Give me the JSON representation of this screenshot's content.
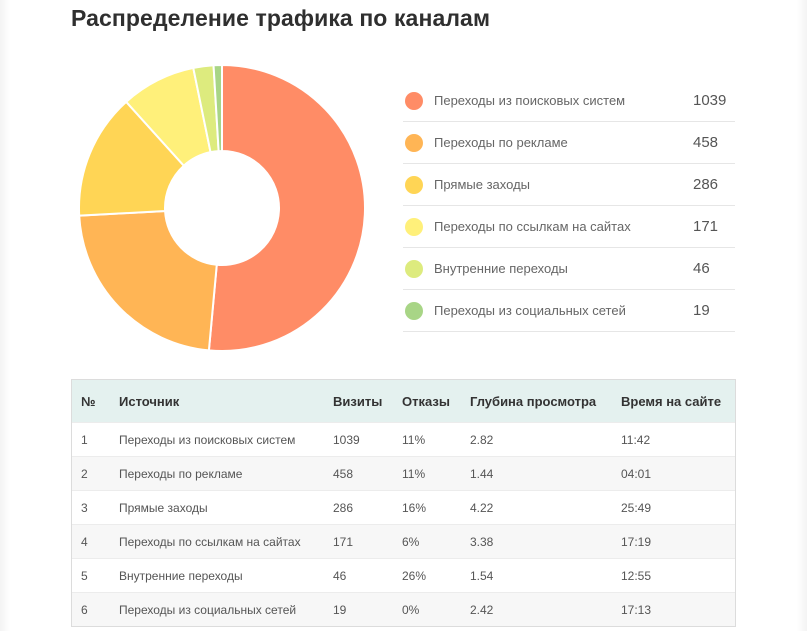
{
  "title": "Распределение трафика по каналам",
  "chart_data": {
    "type": "pie",
    "title": "Распределение трафика по каналам",
    "categories": [
      "Переходы из поисковых систем",
      "Переходы по рекламе",
      "Прямые заходы",
      "Переходы по ссылкам на сайтах",
      "Внутренние переходы",
      "Переходы из социальных сетей"
    ],
    "values": [
      1039,
      458,
      286,
      171,
      46,
      19
    ],
    "colors": [
      "#FF8C66",
      "#FFB555",
      "#FFD555",
      "#FFF07A",
      "#DDEB7E",
      "#A8D586"
    ],
    "hole": "donut"
  },
  "legend": [
    {
      "label": "Переходы из поисковых систем",
      "value": "1039",
      "color": "#FF8C66"
    },
    {
      "label": "Переходы по рекламе",
      "value": "458",
      "color": "#FFB555"
    },
    {
      "label": "Прямые заходы",
      "value": "286",
      "color": "#FFD555"
    },
    {
      "label": "Переходы по ссылкам на сайтах",
      "value": "171",
      "color": "#FFF07A"
    },
    {
      "label": "Внутренние переходы",
      "value": "46",
      "color": "#DDEB7E"
    },
    {
      "label": "Переходы из социальных сетей",
      "value": "19",
      "color": "#A8D586"
    }
  ],
  "table": {
    "headers": {
      "num": "№",
      "source": "Источник",
      "visits": "Визиты",
      "bounces": "Отказы",
      "depth": "Глубина просмотра",
      "time": "Время на сайте"
    },
    "rows": [
      {
        "num": "1",
        "source": "Переходы из поисковых систем",
        "visits": "1039",
        "bounces": "11%",
        "depth": "2.82",
        "time": "11:42"
      },
      {
        "num": "2",
        "source": "Переходы по рекламе",
        "visits": "458",
        "bounces": "11%",
        "depth": "1.44",
        "time": "04:01"
      },
      {
        "num": "3",
        "source": "Прямые заходы",
        "visits": "286",
        "bounces": "16%",
        "depth": "4.22",
        "time": "25:49"
      },
      {
        "num": "4",
        "source": "Переходы по ссылкам на сайтах",
        "visits": "171",
        "bounces": "6%",
        "depth": "3.38",
        "time": "17:19"
      },
      {
        "num": "5",
        "source": "Внутренние переходы",
        "visits": "46",
        "bounces": "26%",
        "depth": "1.54",
        "time": "12:55"
      },
      {
        "num": "6",
        "source": "Переходы из социальных сетей",
        "visits": "19",
        "bounces": "0%",
        "depth": "2.42",
        "time": "17:13"
      }
    ]
  }
}
